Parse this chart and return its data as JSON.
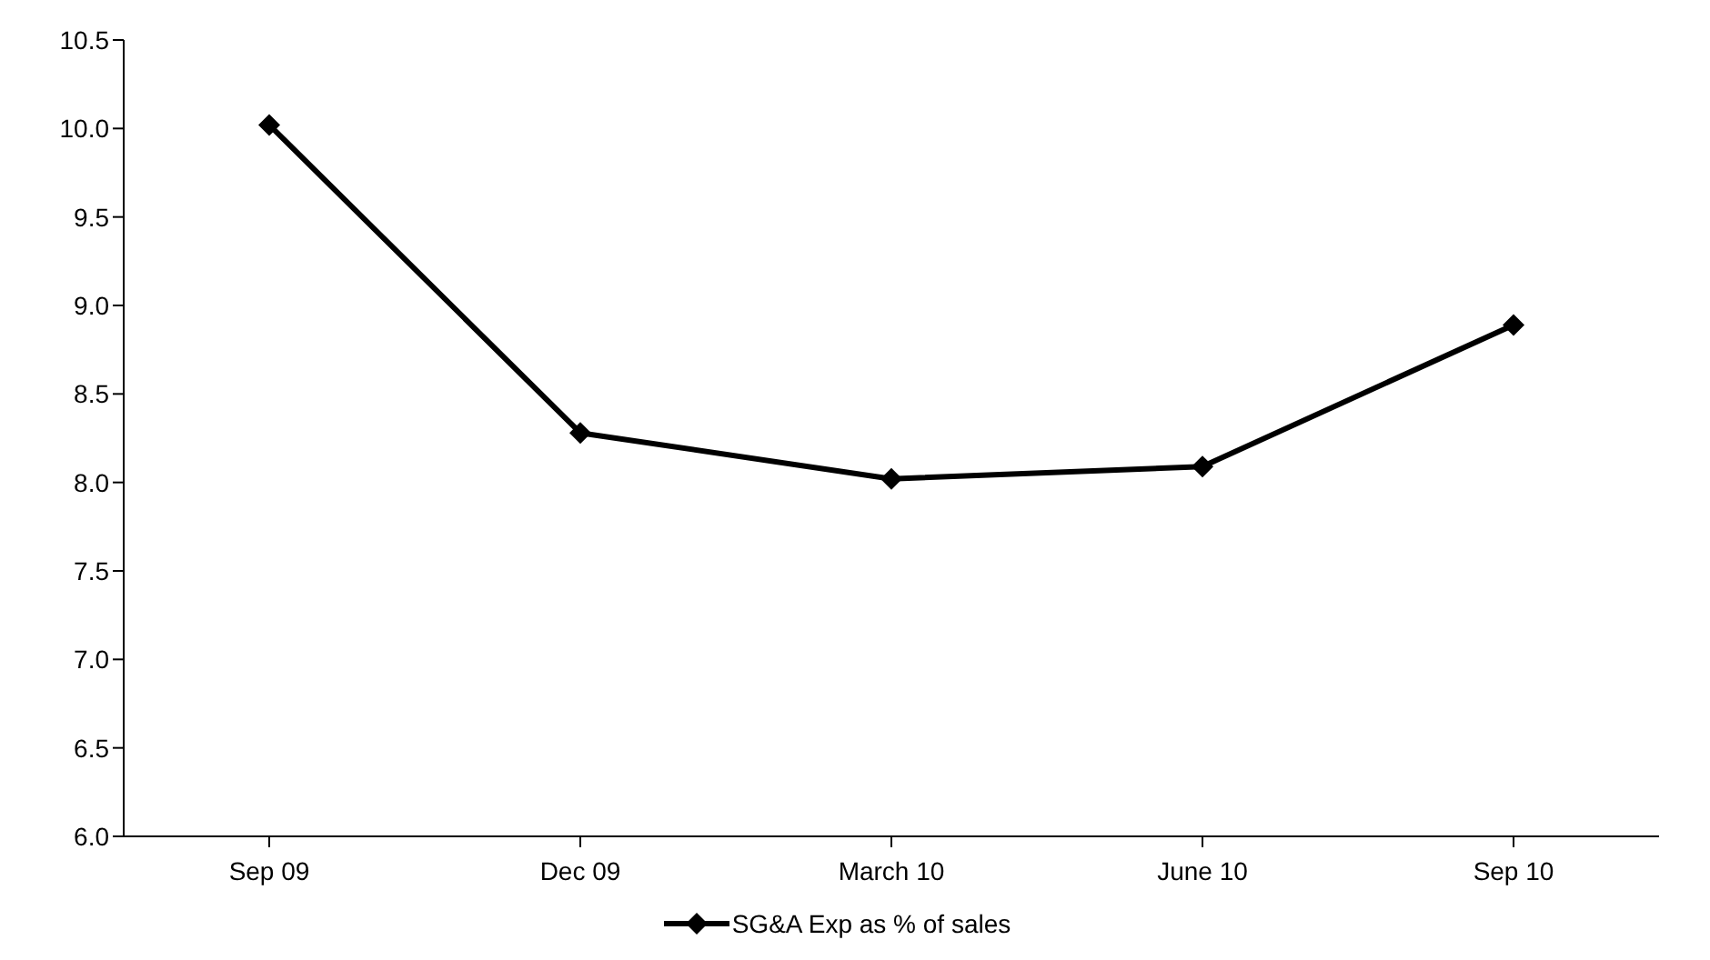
{
  "chart_data": {
    "type": "line",
    "categories": [
      "Sep 09",
      "Dec 09",
      "March 10",
      "June 10",
      "Sep 10"
    ],
    "series": [
      {
        "name": "SG&A Exp as % of sales",
        "color": "#000000",
        "values": [
          10.02,
          8.28,
          8.02,
          8.09,
          8.89
        ]
      }
    ],
    "ylim": [
      6,
      10.5
    ],
    "yticks": [
      {
        "value": 6,
        "label": "6.0"
      },
      {
        "value": 6.5,
        "label": "6.5"
      },
      {
        "value": 7,
        "label": "7.0"
      },
      {
        "value": 7.5,
        "label": "7.5"
      },
      {
        "value": 8,
        "label": "8.0"
      },
      {
        "value": 8.5,
        "label": "8.5"
      },
      {
        "value": 9,
        "label": "9.0"
      },
      {
        "value": 9.5,
        "label": "9.5"
      },
      {
        "value": 10,
        "label": "10.0"
      },
      {
        "value": 10.5,
        "label": "10.5"
      }
    ],
    "grid": false,
    "legend": "bottom",
    "marker": "diamond",
    "line_style": "solid"
  }
}
